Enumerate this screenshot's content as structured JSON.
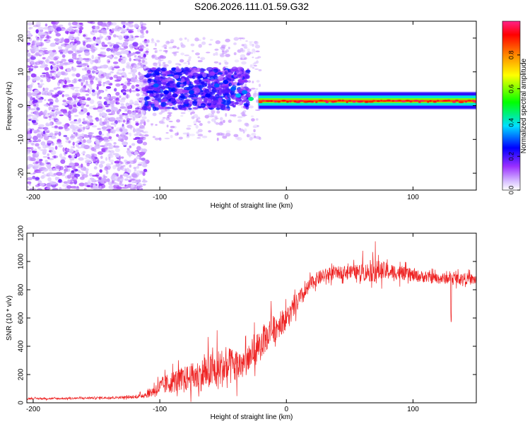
{
  "title": "S206.2026.111.01.59.G32",
  "chart_data": [
    {
      "type": "heatmap",
      "panel": "spectrogram",
      "xlabel": "Height of straight line (km)",
      "ylabel": "Frequency (Hz)",
      "xlim": [
        -205,
        150
      ],
      "ylim": [
        -25,
        25
      ],
      "xticks": [
        -200,
        -100,
        0,
        100
      ],
      "xtick_labels": [
        "-200",
        "-100",
        "0",
        "100"
      ],
      "yticks": [
        -20,
        -10,
        0,
        10,
        20
      ],
      "ytick_labels": [
        "-20",
        "-10",
        "0",
        "10",
        "20"
      ],
      "colorbar": {
        "label": "Normalized spectral amplitude",
        "range": [
          0,
          1
        ],
        "ticks": [
          0.0,
          0.2,
          0.4,
          0.6,
          0.8
        ],
        "tick_labels": [
          "0.0",
          "0.2",
          "0.4",
          "0.6",
          "0.8"
        ]
      },
      "signal_band": {
        "x_start": -22,
        "x_end": 150,
        "center_freq_hz": 1,
        "peak_amplitude": 0.85
      },
      "blobs": [
        {
          "x": -103,
          "y": 6,
          "v": 0.3
        },
        {
          "x": -95,
          "y": 4,
          "v": 0.25
        },
        {
          "x": -88,
          "y": 3,
          "v": 0.22
        },
        {
          "x": -75,
          "y": 4,
          "v": 0.28
        },
        {
          "x": -62,
          "y": 3,
          "v": 0.25
        },
        {
          "x": -55,
          "y": 6,
          "v": 0.3
        },
        {
          "x": -48,
          "y": 7,
          "v": 0.26
        },
        {
          "x": -42,
          "y": 5,
          "v": 0.3
        },
        {
          "x": -38,
          "y": 3,
          "v": 0.35
        },
        {
          "x": -33,
          "y": 4,
          "v": 0.32
        },
        {
          "x": -28,
          "y": 2,
          "v": 0.45
        }
      ]
    },
    {
      "type": "line",
      "panel": "snr",
      "xlabel": "Height of straight line (km)",
      "ylabel": "SNR (10 * v/v)",
      "xlim": [
        -205,
        150
      ],
      "ylim": [
        0,
        1200
      ],
      "xticks": [
        -200,
        -100,
        0,
        100
      ],
      "xtick_labels": [
        "-200",
        "-100",
        "0",
        "100"
      ],
      "yticks": [
        0,
        200,
        400,
        600,
        800,
        1000,
        1200
      ],
      "ytick_labels": [
        "0",
        "200",
        "400",
        "600",
        "800",
        "1000",
        "1200"
      ],
      "series": [
        {
          "name": "SNR",
          "color": "#ee2222",
          "x": [
            -205,
            -180,
            -150,
            -120,
            -110,
            -100,
            -90,
            -80,
            -70,
            -60,
            -50,
            -40,
            -35,
            -30,
            -25,
            -20,
            -15,
            -10,
            -5,
            0,
            5,
            10,
            15,
            20,
            25,
            30,
            40,
            50,
            60,
            70,
            80,
            90,
            100,
            110,
            120,
            130,
            140,
            150
          ],
          "y": [
            30,
            30,
            35,
            40,
            60,
            110,
            150,
            170,
            190,
            220,
            250,
            260,
            270,
            300,
            380,
            420,
            480,
            520,
            560,
            600,
            650,
            730,
            780,
            850,
            880,
            900,
            920,
            930,
            920,
            935,
            930,
            920,
            900,
            890,
            880,
            880,
            880,
            870
          ],
          "noise": [
            6,
            6,
            8,
            10,
            25,
            60,
            80,
            90,
            110,
            130,
            140,
            130,
            110,
            100,
            120,
            110,
            110,
            100,
            90,
            80,
            70,
            70,
            60,
            50,
            50,
            50,
            45,
            45,
            60,
            80,
            60,
            50,
            45,
            40,
            40,
            40,
            40,
            40
          ]
        }
      ]
    }
  ]
}
